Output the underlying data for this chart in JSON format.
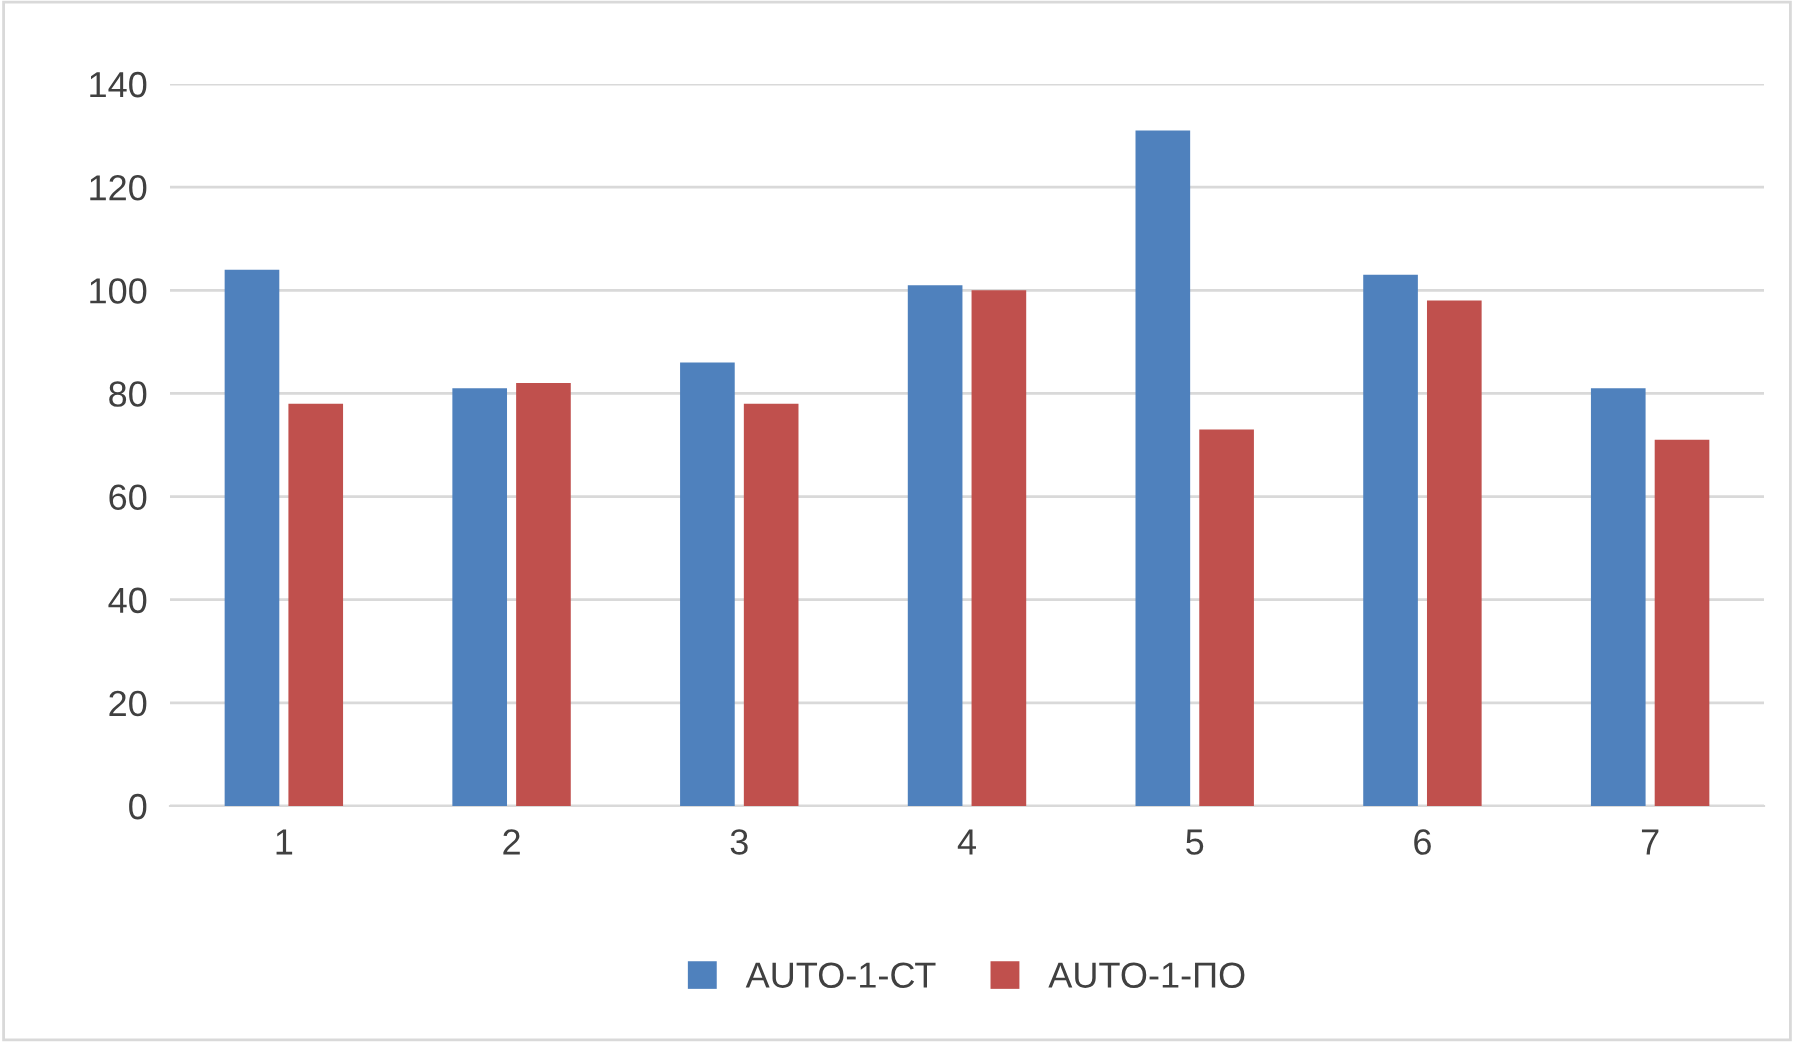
{
  "chart_data": {
    "type": "bar",
    "categories": [
      "1",
      "2",
      "3",
      "4",
      "5",
      "6",
      "7"
    ],
    "series": [
      {
        "name": "AUTO-1-СТ",
        "color": "#4f81bd",
        "values": [
          104,
          81,
          86,
          101,
          131,
          103,
          81
        ]
      },
      {
        "name": "AUTO-1-ПО",
        "color": "#c0504d",
        "values": [
          78,
          82,
          78,
          100,
          73,
          98,
          71
        ]
      }
    ],
    "ylim": [
      0,
      140
    ],
    "yticks": [
      0,
      20,
      40,
      60,
      80,
      100,
      120,
      140
    ],
    "grid": "y",
    "legend": "bottom"
  }
}
